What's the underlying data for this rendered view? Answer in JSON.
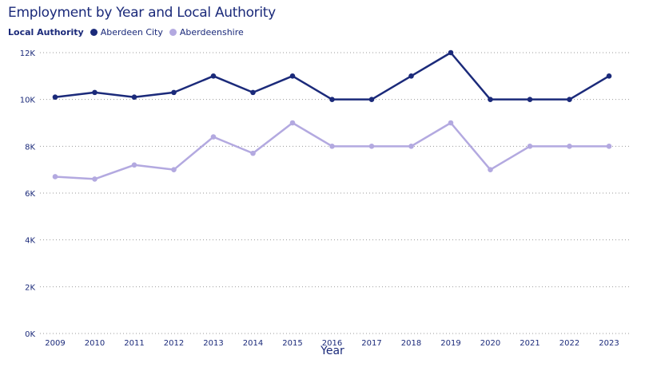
{
  "chart_data": {
    "type": "line",
    "title": "Employment by Year and Local Authority",
    "xlabel": "Year",
    "ylabel": "",
    "legend_title": "Local Authority",
    "legend_position": "top-left",
    "grid": true,
    "ylim": [
      0,
      12000
    ],
    "yticks": [
      {
        "value": 0,
        "label": "0K"
      },
      {
        "value": 2000,
        "label": "2K"
      },
      {
        "value": 4000,
        "label": "4K"
      },
      {
        "value": 6000,
        "label": "6K"
      },
      {
        "value": 8000,
        "label": "8K"
      },
      {
        "value": 10000,
        "label": "10K"
      },
      {
        "value": 12000,
        "label": "12K"
      }
    ],
    "categories": [
      "2009",
      "2010",
      "2011",
      "2012",
      "2013",
      "2014",
      "2015",
      "2016",
      "2017",
      "2018",
      "2019",
      "2020",
      "2021",
      "2022",
      "2023"
    ],
    "series": [
      {
        "name": "Aberdeen City",
        "color": "#1b2a7a",
        "values": [
          10100,
          10300,
          10100,
          10300,
          11000,
          10300,
          11000,
          10000,
          10000,
          11000,
          12000,
          10000,
          10000,
          10000,
          11000
        ]
      },
      {
        "name": "Aberdeenshire",
        "color": "#b3a9e0",
        "values": [
          6700,
          6600,
          7200,
          7000,
          8400,
          7700,
          9000,
          8000,
          8000,
          8000,
          9000,
          7000,
          8000,
          8000,
          8000
        ]
      }
    ]
  }
}
